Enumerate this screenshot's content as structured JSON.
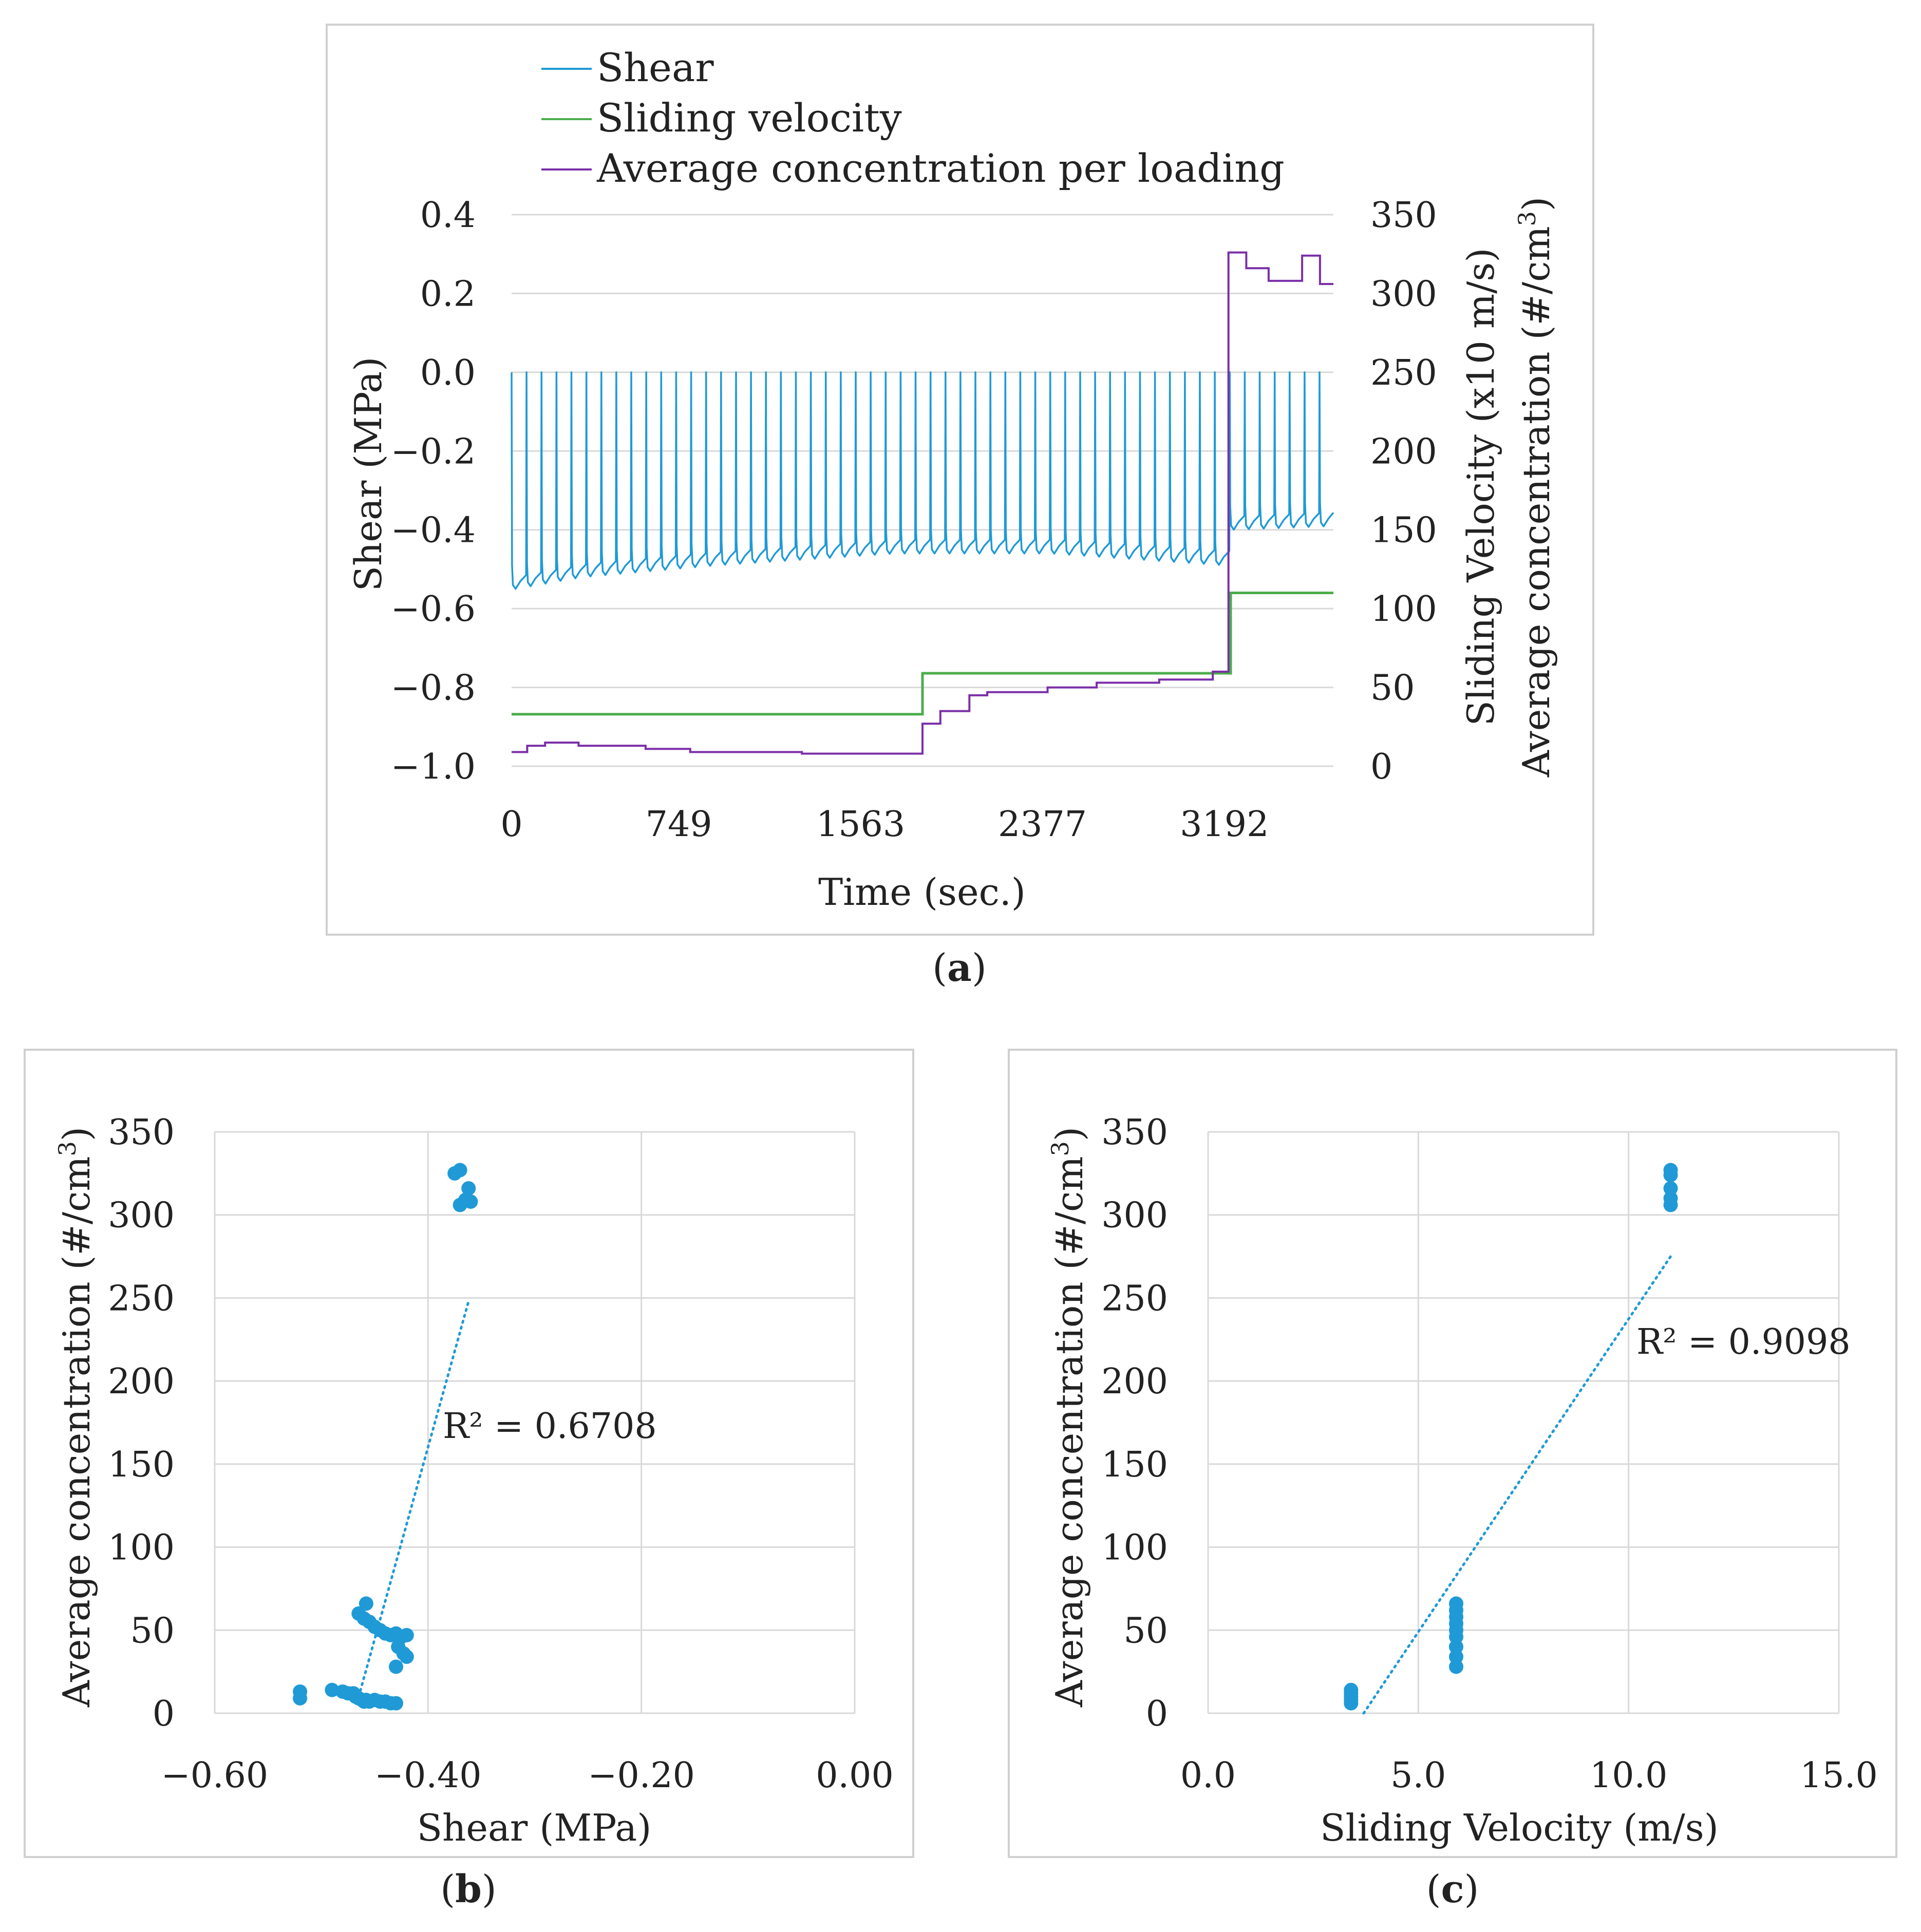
{
  "colors": {
    "shear": "#1f9ad6",
    "velocity": "#4cad4c",
    "concentration": "#7b2fa8",
    "scatter": "#1f9ad6",
    "trend": "#1f9ad6"
  },
  "chart_data": [
    {
      "id": "a",
      "type": "line",
      "panel_label_open": "(",
      "panel_label": "a",
      "panel_label_close": ")",
      "xlabel": "Time (sec.)",
      "ylabel_left": "Shear (MPa)",
      "ylabel_right_1": "Sliding Velocity (x10 m/s)",
      "ylabel_right_2": "Average concentration (#/cm",
      "ylabel_right_2_sup": "3",
      "ylabel_right_2_end": ")",
      "xlim": [
        0,
        3680
      ],
      "x_ticks": [
        0,
        749,
        1563,
        2377,
        3192
      ],
      "ylim_left": [
        -1.0,
        0.4
      ],
      "y_ticks_left": [
        "0.4",
        "0.2",
        "0.0",
        "−0.2",
        "−0.4",
        "−0.6",
        "−0.8",
        "−1.0"
      ],
      "ylim_right": [
        0,
        350
      ],
      "y_ticks_right": [
        "350",
        "300",
        "250",
        "200",
        "150",
        "100",
        "50",
        "0"
      ],
      "legend": [
        "Shear",
        "Sliding velocity",
        "Average concentration per loading"
      ],
      "series": [
        {
          "name": "Shear",
          "axis": "left",
          "cycle_seconds": 67,
          "peak": 0.0,
          "trough": [
            [
              0,
              -0.55
            ],
            [
              300,
              -0.52
            ],
            [
              900,
              -0.49
            ],
            [
              1700,
              -0.46
            ],
            [
              2400,
              -0.46
            ],
            [
              3180,
              -0.49
            ],
            [
              3200,
              -0.4
            ],
            [
              3680,
              -0.39
            ]
          ]
        },
        {
          "name": "Sliding velocity",
          "axis": "right",
          "values": [
            [
              0,
              33
            ],
            [
              1840,
              33
            ],
            [
              1840,
              59
            ],
            [
              3220,
              59
            ],
            [
              3220,
              110
            ],
            [
              3680,
              110
            ]
          ]
        },
        {
          "name": "Average concentration per loading",
          "axis": "right",
          "values": [
            [
              0,
              9
            ],
            [
              70,
              9
            ],
            [
              70,
              13
            ],
            [
              150,
              13
            ],
            [
              150,
              15
            ],
            [
              300,
              15
            ],
            [
              300,
              13
            ],
            [
              600,
              13
            ],
            [
              600,
              11
            ],
            [
              800,
              11
            ],
            [
              800,
              9
            ],
            [
              1300,
              9
            ],
            [
              1300,
              8
            ],
            [
              1840,
              8
            ],
            [
              1840,
              27
            ],
            [
              1920,
              27
            ],
            [
              1920,
              35
            ],
            [
              2050,
              35
            ],
            [
              2050,
              45
            ],
            [
              2130,
              45
            ],
            [
              2130,
              47
            ],
            [
              2400,
              47
            ],
            [
              2400,
              50
            ],
            [
              2620,
              50
            ],
            [
              2620,
              53
            ],
            [
              2900,
              53
            ],
            [
              2900,
              55
            ],
            [
              3140,
              55
            ],
            [
              3140,
              60
            ],
            [
              3210,
              60
            ],
            [
              3210,
              326
            ],
            [
              3290,
              326
            ],
            [
              3290,
              316
            ],
            [
              3390,
              316
            ],
            [
              3390,
              308
            ],
            [
              3540,
              308
            ],
            [
              3540,
              324
            ],
            [
              3620,
              324
            ],
            [
              3620,
              306
            ],
            [
              3680,
              306
            ]
          ]
        }
      ]
    },
    {
      "id": "b",
      "type": "scatter",
      "panel_label_open": "(",
      "panel_label": "b",
      "panel_label_close": ")",
      "xlabel": "Shear (MPa)",
      "ylabel": "Average concentration (#/cm",
      "ylabel_sup": "3",
      "ylabel_end": ")",
      "xlim": [
        -0.6,
        0.0
      ],
      "x_ticks": [
        "−0.60",
        "−0.40",
        "−0.20",
        "0.00"
      ],
      "ylim": [
        0,
        350
      ],
      "y_ticks": [
        "350",
        "300",
        "250",
        "200",
        "150",
        "100",
        "50",
        "0"
      ],
      "trend_label": "R² = 0.6708",
      "trend": [
        [
          -0.465,
          10
        ],
        [
          -0.362,
          248
        ]
      ],
      "points": [
        [
          -0.52,
          9
        ],
        [
          -0.52,
          13
        ],
        [
          -0.49,
          14
        ],
        [
          -0.48,
          13
        ],
        [
          -0.475,
          12
        ],
        [
          -0.47,
          12
        ],
        [
          -0.468,
          10
        ],
        [
          -0.465,
          9
        ],
        [
          -0.462,
          8
        ],
        [
          -0.46,
          7
        ],
        [
          -0.458,
          8
        ],
        [
          -0.455,
          7
        ],
        [
          -0.45,
          8
        ],
        [
          -0.445,
          7
        ],
        [
          -0.44,
          7
        ],
        [
          -0.435,
          6
        ],
        [
          -0.43,
          6
        ],
        [
          -0.465,
          60
        ],
        [
          -0.46,
          57
        ],
        [
          -0.458,
          66
        ],
        [
          -0.455,
          55
        ],
        [
          -0.45,
          52
        ],
        [
          -0.445,
          50
        ],
        [
          -0.44,
          48
        ],
        [
          -0.435,
          47
        ],
        [
          -0.43,
          48
        ],
        [
          -0.425,
          46
        ],
        [
          -0.42,
          47
        ],
        [
          -0.43,
          28
        ],
        [
          -0.423,
          36
        ],
        [
          -0.42,
          34
        ],
        [
          -0.428,
          40
        ],
        [
          -0.375,
          325
        ],
        [
          -0.37,
          327
        ],
        [
          -0.37,
          306
        ],
        [
          -0.365,
          309
        ],
        [
          -0.362,
          316
        ],
        [
          -0.36,
          308
        ]
      ]
    },
    {
      "id": "c",
      "type": "scatter",
      "panel_label_open": "(",
      "panel_label": "c",
      "panel_label_close": ")",
      "xlabel": "Sliding Velocity (m/s)",
      "ylabel": "Average concentration (#/cm",
      "ylabel_sup": "3",
      "ylabel_end": ")",
      "xlim": [
        0,
        15
      ],
      "x_ticks": [
        "0.0",
        "5.0",
        "10.0",
        "15.0"
      ],
      "ylim": [
        0,
        350
      ],
      "y_ticks": [
        "350",
        "300",
        "250",
        "200",
        "150",
        "100",
        "50",
        "0"
      ],
      "trend_label": "R² = 0.9098",
      "trend": [
        [
          3.7,
          0
        ],
        [
          11.0,
          275
        ]
      ],
      "points": [
        [
          3.4,
          6
        ],
        [
          3.4,
          8
        ],
        [
          3.4,
          10
        ],
        [
          3.4,
          12
        ],
        [
          3.4,
          14
        ],
        [
          5.9,
          28
        ],
        [
          5.9,
          34
        ],
        [
          5.9,
          40
        ],
        [
          5.9,
          46
        ],
        [
          5.9,
          50
        ],
        [
          5.9,
          54
        ],
        [
          5.9,
          58
        ],
        [
          5.9,
          62
        ],
        [
          5.9,
          66
        ],
        [
          11.0,
          306
        ],
        [
          11.0,
          310
        ],
        [
          11.0,
          316
        ],
        [
          11.0,
          324
        ],
        [
          11.0,
          327
        ]
      ]
    }
  ]
}
